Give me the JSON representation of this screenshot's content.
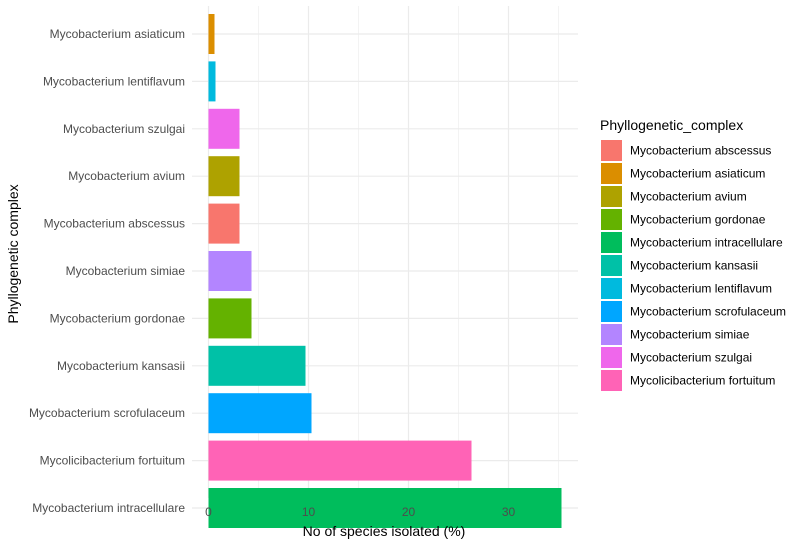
{
  "chart_data": {
    "type": "bar",
    "orientation": "horizontal",
    "xlabel": "No of species isolated (%)",
    "ylabel": "Phyllogenetic complex",
    "xlim": [
      0,
      36.5
    ],
    "x_ticks": [
      0,
      10,
      20,
      30
    ],
    "grid": true,
    "legend_position": "right",
    "legend_title": "Phyllogenetic_complex",
    "categories": [
      "Mycobacterium asiaticum",
      "Mycobacterium lentiflavum",
      "Mycobacterium szulgai",
      "Mycobacterium avium",
      "Mycobacterium abscessus",
      "Mycobacterium simiae",
      "Mycobacterium gordonae",
      "Mycobacterium kansasii",
      "Mycobacterium scrofulaceum",
      "Mycolicibacterium fortuitum",
      "Mycobacterium intracellulare"
    ],
    "values": [
      0.6,
      0.7,
      3.1,
      3.1,
      3.1,
      4.3,
      4.3,
      9.7,
      10.3,
      26.3,
      35.3
    ],
    "legend": [
      {
        "name": "Mycobacterium abscessus",
        "color": "#F8766D"
      },
      {
        "name": "Mycobacterium asiaticum",
        "color": "#DB8E00"
      },
      {
        "name": "Mycobacterium avium",
        "color": "#AEA200"
      },
      {
        "name": "Mycobacterium gordonae",
        "color": "#64B200"
      },
      {
        "name": "Mycobacterium intracellulare",
        "color": "#00BD5C"
      },
      {
        "name": "Mycobacterium kansasii",
        "color": "#00C1A7"
      },
      {
        "name": "Mycobacterium lentiflavum",
        "color": "#00BADE"
      },
      {
        "name": "Mycobacterium scrofulaceum",
        "color": "#00A6FF"
      },
      {
        "name": "Mycobacterium simiae",
        "color": "#B385FF"
      },
      {
        "name": "Mycobacterium szulgai",
        "color": "#EF67EB"
      },
      {
        "name": "Mycolicibacterium fortuitum",
        "color": "#FF63B6"
      }
    ]
  }
}
